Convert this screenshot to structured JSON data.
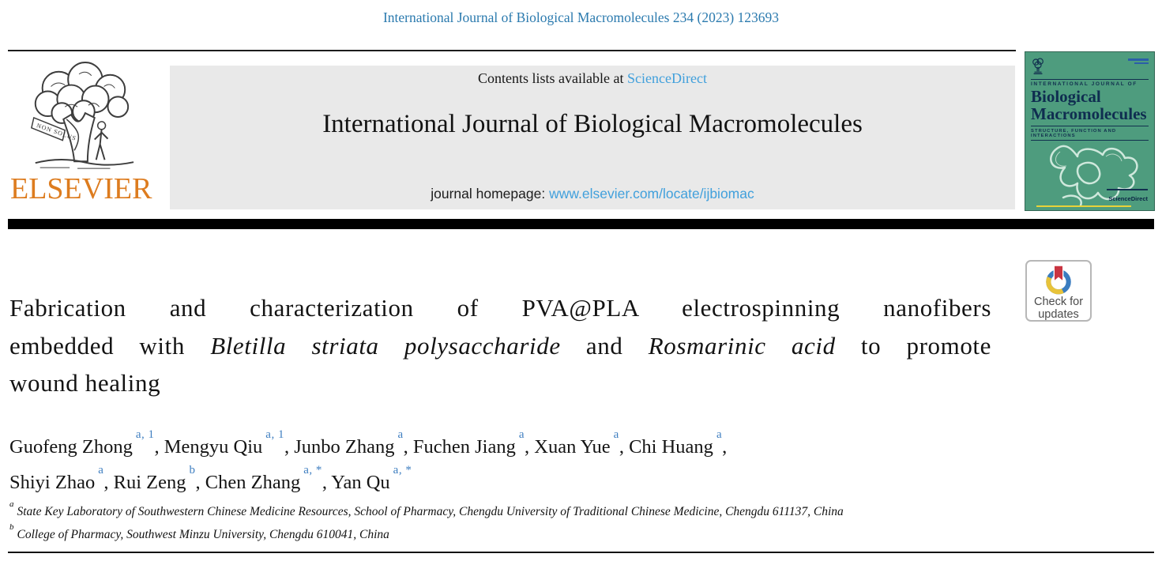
{
  "colors": {
    "citation_blue": "#2B7AAE",
    "link_blue": "#41A0DC",
    "elsevier_orange": "#DD7C1F",
    "cover_green": "#4E9C7E",
    "cover_navy": "#0F2D50",
    "crossmark_blue": "#3A7CBF",
    "crossmark_yellow": "#E8C33A",
    "crossmark_red": "#C93441"
  },
  "header": {
    "citation": "International Journal of Biological Macromolecules 234 (2023) 123693"
  },
  "masthead": {
    "contents_prefix": "Contents lists available at ",
    "sciencedirect_link": "ScienceDirect",
    "journal_title": "International Journal of Biological Macromolecules",
    "homepage_prefix": "journal homepage: ",
    "homepage_url": "www.elsevier.com/locate/ijbiomac",
    "publisher_wordmark": "ELSEVIER",
    "logo_motto": "NON SOLUS"
  },
  "cover": {
    "kicker": "INTERNATIONAL JOURNAL OF",
    "title_line1": "Biological",
    "title_line2": "Macromolecules",
    "subtitle": "STRUCTURE, FUNCTION AND INTERACTIONS",
    "sciencedirect": "ScienceDirect"
  },
  "crossmark": {
    "line1": "Check for",
    "line2": "updates"
  },
  "article": {
    "title_lines": [
      {
        "segments": [
          {
            "text": "Fabrication and characterization of PVA@PLA electrospinning nanofibers",
            "italic": false
          }
        ]
      },
      {
        "segments": [
          {
            "text": "embedded with ",
            "italic": false
          },
          {
            "text": "Bletilla striata polysaccharide",
            "italic": true
          },
          {
            "text": " and ",
            "italic": false
          },
          {
            "text": "Rosmarinic acid",
            "italic": true
          },
          {
            "text": " to promote",
            "italic": false
          }
        ]
      },
      {
        "segments": [
          {
            "text": "wound healing",
            "italic": false
          }
        ]
      }
    ],
    "author_lines": [
      [
        {
          "name": "Guofeng Zhong",
          "sup": "a, 1",
          "trail": ", "
        },
        {
          "name": "Mengyu Qiu",
          "sup": "a, 1",
          "trail": ", "
        },
        {
          "name": "Junbo Zhang",
          "sup": "a",
          "trail": ", "
        },
        {
          "name": "Fuchen Jiang",
          "sup": "a",
          "trail": ", "
        },
        {
          "name": "Xuan Yue",
          "sup": "a",
          "trail": ", "
        },
        {
          "name": "Chi Huang",
          "sup": "a",
          "trail": ","
        }
      ],
      [
        {
          "name": "Shiyi Zhao",
          "sup": "a",
          "trail": ", "
        },
        {
          "name": "Rui Zeng",
          "sup": "b",
          "trail": ", "
        },
        {
          "name": "Chen Zhang",
          "sup": "a, *",
          "trail": ", "
        },
        {
          "name": "Yan Qu",
          "sup": "a, *",
          "trail": ""
        }
      ]
    ],
    "affiliations": [
      {
        "sup": "a",
        "text": "State Key Laboratory of Southwestern Chinese Medicine Resources, School of Pharmacy, Chengdu University of Traditional Chinese Medicine, Chengdu 611137, China"
      },
      {
        "sup": "b",
        "text": "College of Pharmacy, Southwest Minzu University, Chengdu 610041, China"
      }
    ]
  }
}
